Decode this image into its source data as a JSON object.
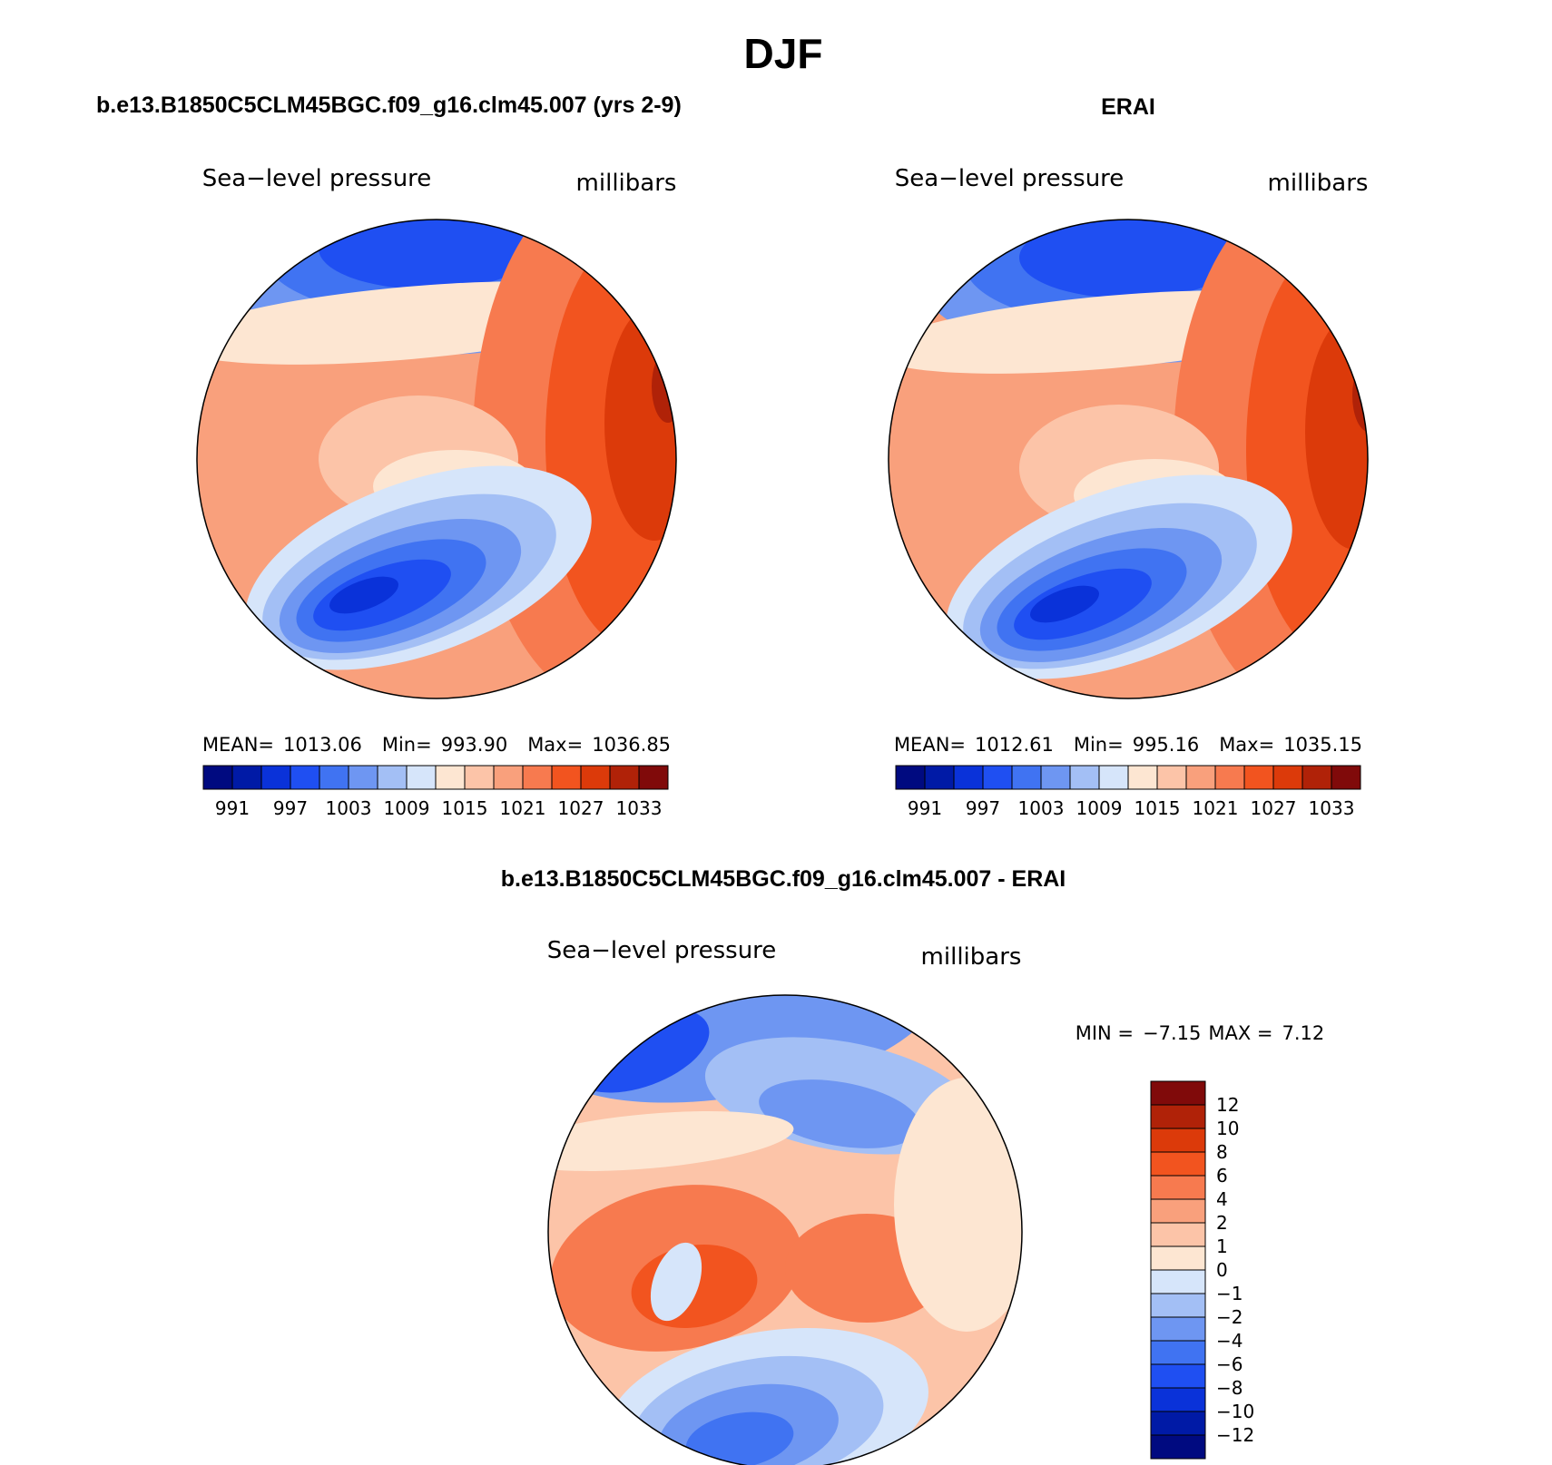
{
  "title": "DJF",
  "panels": [
    {
      "title": "b.e13.B1850C5CLM45BGC.f09_g16.clm45.007 (yrs 2-9)",
      "variable": "Sea−level pressure",
      "units": "millibars",
      "stats": [
        {
          "label": "MEAN=",
          "value": "1013.06"
        },
        {
          "label": "Min=",
          "value": "993.90"
        },
        {
          "label": "Max=",
          "value": "1036.85"
        }
      ]
    },
    {
      "title": "ERAI",
      "variable": "Sea−level pressure",
      "units": "millibars",
      "stats": [
        {
          "label": "MEAN=",
          "value": "1012.61"
        },
        {
          "label": "Min=",
          "value": "995.16"
        },
        {
          "label": "Max=",
          "value": "1035.15"
        }
      ]
    }
  ],
  "colorbar": {
    "labels": [
      "991",
      "997",
      "1003",
      "1009",
      "1015",
      "1021",
      "1027",
      "1033"
    ],
    "colors": [
      "#000a80",
      "#001aa6",
      "#0a32d9",
      "#1f4ff2",
      "#4073f2",
      "#6e96f2",
      "#a3bff5",
      "#d6e5fa",
      "#fde6d2",
      "#fcc4a8",
      "#f9a07c",
      "#f77a4f",
      "#f2541f",
      "#dc3a0a",
      "#b02208",
      "#800a0a"
    ]
  },
  "difference": {
    "title": "b.e13.B1850C5CLM45BGC.f09_g16.clm45.007 - ERAI",
    "variable": "Sea−level pressure",
    "units": "millibars",
    "stats": [
      {
        "label": "MIN =",
        "value": "−7.15"
      },
      {
        "label": "MAX =",
        "value": "7.12"
      }
    ],
    "colorbar": {
      "labels": [
        "12",
        "10",
        "8",
        "6",
        "4",
        "2",
        "1",
        "0",
        "−1",
        "−2",
        "−4",
        "−6",
        "−8",
        "−10",
        "−12"
      ],
      "colors": [
        "#800a0a",
        "#b02208",
        "#dc3a0a",
        "#f2541f",
        "#f77a4f",
        "#f9a07c",
        "#fcc4a8",
        "#fde6d2",
        "#d6e5fa",
        "#a3bff5",
        "#6e96f2",
        "#4073f2",
        "#1f4ff2",
        "#0a32d9",
        "#001aa6",
        "#000a80"
      ]
    }
  }
}
